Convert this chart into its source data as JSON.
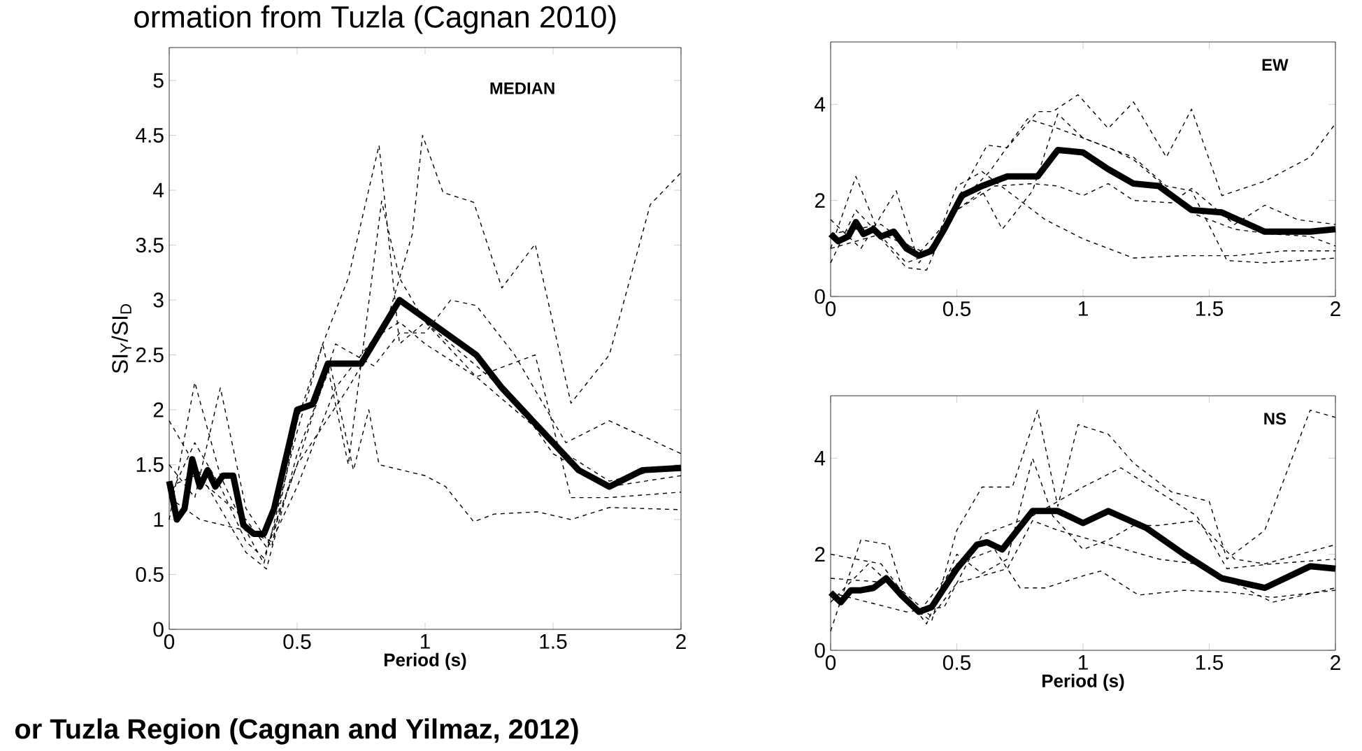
{
  "chart_data": [
    {
      "type": "line",
      "title": "MEDIAN",
      "xlabel": "Period (s)",
      "ylabel": "SI$_{Y}$/SI$_{D}$",
      "xlim": [
        0,
        2
      ],
      "ylim": [
        0,
        5.3
      ],
      "xticks": [
        0,
        0.5,
        1,
        1.5,
        2
      ],
      "yticks": [
        0,
        0.5,
        1,
        1.5,
        2,
        2.5,
        3,
        3.5,
        4,
        4.5,
        5
      ],
      "annotations": [
        "ormation from Tuzla (Cagnan 2010)",
        "or Tuzla Region (Cagnan and Yilmaz, 2012)"
      ],
      "series": [
        {
          "color": "#000000",
          "line_style": "dashed",
          "x": [
            0,
            0.1,
            0.2,
            0.3,
            0.37,
            0.5,
            0.7,
            0.85,
            0.95,
            0.99,
            1.07,
            1.19,
            1.3,
            1.43,
            1.57,
            1.72,
            1.88,
            2.0
          ],
          "values": [
            1.2,
            1.7,
            1.3,
            0.8,
            0.65,
            1.5,
            2.2,
            2.8,
            3.6,
            4.5,
            3.98,
            3.89,
            3.11,
            3.51,
            2.06,
            2.5,
            3.87,
            4.16
          ]
        },
        {
          "color": "#000000",
          "line_style": "dashed",
          "x": [
            0,
            0.1,
            0.2,
            0.3,
            0.37,
            0.5,
            0.6,
            0.7,
            0.82,
            0.9,
            1.0,
            1.1,
            1.2,
            1.35,
            1.5,
            1.72,
            2.0
          ],
          "values": [
            1.0,
            2.25,
            1.4,
            0.9,
            0.6,
            1.8,
            2.6,
            3.2,
            4.41,
            2.6,
            2.8,
            2.6,
            2.4,
            2.1,
            1.6,
            1.3,
            1.4
          ]
        },
        {
          "color": "#000000",
          "line_style": "dashed",
          "x": [
            0,
            0.1,
            0.3,
            0.38,
            0.5,
            0.63,
            0.72,
            0.78,
            0.82,
            1.0,
            1.08,
            1.19,
            1.27,
            1.44,
            1.57,
            1.72,
            2.0
          ],
          "values": [
            1.9,
            1.5,
            0.7,
            0.55,
            1.6,
            2.4,
            1.45,
            2.0,
            1.5,
            1.4,
            1.3,
            0.98,
            1.05,
            1.07,
            1.0,
            1.11,
            1.09
          ]
        },
        {
          "color": "#000000",
          "line_style": "dashed",
          "x": [
            0,
            0.1,
            0.2,
            0.3,
            0.4,
            0.5,
            0.6,
            0.7,
            0.83,
            0.9,
            1.0,
            1.1,
            1.2,
            1.43,
            1.57,
            1.72,
            2.0
          ],
          "values": [
            1.5,
            1.2,
            2.2,
            1.1,
            0.75,
            1.9,
            2.6,
            1.5,
            3.9,
            3.2,
            2.8,
            2.55,
            2.3,
            2.5,
            1.2,
            1.2,
            1.25
          ]
        },
        {
          "color": "#000000",
          "line_style": "dashed",
          "x": [
            0,
            0.1,
            0.3,
            0.38,
            0.5,
            0.65,
            0.8,
            0.9,
            1.0,
            1.1,
            1.2,
            1.35,
            1.55,
            1.72,
            2.0
          ],
          "values": [
            1.3,
            1.4,
            1.0,
            0.75,
            1.5,
            2.6,
            2.4,
            2.7,
            2.7,
            3.0,
            2.95,
            2.5,
            1.7,
            1.9,
            1.6
          ]
        },
        {
          "color": "#000000",
          "line_style": "dashed",
          "x": [
            0,
            0.12,
            0.3,
            0.4,
            0.5,
            0.65,
            0.8,
            0.9,
            1.0,
            1.2,
            1.35,
            1.55,
            1.72,
            2.0
          ],
          "values": [
            1.2,
            1.0,
            0.9,
            0.8,
            1.3,
            2.2,
            2.65,
            2.8,
            2.6,
            2.3,
            2.0,
            1.6,
            1.35,
            1.5
          ]
        },
        {
          "color": "#000000",
          "line_style": "solid",
          "x": [
            0,
            0.03,
            0.06,
            0.09,
            0.12,
            0.15,
            0.18,
            0.21,
            0.25,
            0.29,
            0.33,
            0.37,
            0.41,
            0.5,
            0.56,
            0.62,
            0.75,
            0.9,
            1.05,
            1.2,
            1.3,
            1.5,
            1.6,
            1.72,
            1.85,
            2.0
          ],
          "values": [
            1.35,
            1.0,
            1.1,
            1.55,
            1.3,
            1.45,
            1.3,
            1.4,
            1.4,
            0.95,
            0.87,
            0.87,
            1.1,
            2.0,
            2.05,
            2.42,
            2.42,
            3.0,
            2.75,
            2.5,
            2.2,
            1.7,
            1.45,
            1.3,
            1.45,
            1.47
          ]
        }
      ]
    },
    {
      "type": "line",
      "title": "EW",
      "xlim": [
        0,
        2
      ],
      "ylim": [
        0,
        5.3
      ],
      "xticks": [
        0,
        0.5,
        1,
        1.5,
        2
      ],
      "yticks": [
        0,
        2,
        4
      ],
      "series": [
        {
          "color": "#000000",
          "line_style": "dashed",
          "x": [
            0,
            0.1,
            0.2,
            0.3,
            0.38,
            0.5,
            0.62,
            0.7,
            0.82,
            0.88,
            0.98,
            1.1,
            1.2,
            1.33,
            1.43,
            1.55,
            1.72,
            1.9,
            2.0
          ],
          "values": [
            1.0,
            2.5,
            1.2,
            0.6,
            0.55,
            2.0,
            3.15,
            3.1,
            3.85,
            3.85,
            4.2,
            3.5,
            4.05,
            2.9,
            3.9,
            2.1,
            2.4,
            2.9,
            3.6
          ]
        },
        {
          "color": "#000000",
          "line_style": "dashed",
          "x": [
            0,
            0.12,
            0.26,
            0.35,
            0.5,
            0.6,
            0.68,
            0.8,
            0.9,
            1.0,
            1.2,
            1.33,
            1.43,
            1.57,
            1.72,
            2.0
          ],
          "values": [
            1.6,
            1.0,
            2.2,
            0.7,
            1.8,
            2.2,
            1.4,
            2.2,
            3.8,
            3.3,
            2.9,
            2.3,
            2.2,
            0.75,
            0.7,
            0.8
          ]
        },
        {
          "color": "#000000",
          "line_style": "dashed",
          "x": [
            0,
            0.1,
            0.3,
            0.4,
            0.5,
            0.6,
            0.75,
            0.85,
            1.0,
            1.2,
            1.4,
            1.6,
            1.8,
            2.0
          ],
          "values": [
            0.7,
            1.8,
            0.7,
            0.9,
            2.3,
            2.6,
            2.0,
            1.6,
            1.2,
            0.8,
            0.85,
            0.85,
            0.95,
            0.95
          ]
        },
        {
          "color": "#000000",
          "line_style": "dashed",
          "x": [
            0,
            0.2,
            0.35,
            0.5,
            0.65,
            0.8,
            0.9,
            1.0,
            1.1,
            1.2,
            1.35,
            1.43,
            1.6,
            1.72,
            1.85,
            2.0
          ],
          "values": [
            1.3,
            1.5,
            0.9,
            1.8,
            2.3,
            2.35,
            2.3,
            2.1,
            2.35,
            2.0,
            1.95,
            2.25,
            1.5,
            1.9,
            1.6,
            1.5
          ]
        },
        {
          "color": "#000000",
          "line_style": "dashed",
          "x": [
            0,
            0.2,
            0.38,
            0.5,
            0.63,
            0.78,
            0.9,
            1.0,
            1.1,
            1.2,
            1.3,
            1.45,
            1.6,
            1.75,
            1.9,
            2.0
          ],
          "values": [
            1.0,
            1.3,
            0.9,
            1.9,
            2.6,
            3.7,
            3.5,
            3.3,
            3.1,
            2.85,
            2.4,
            1.7,
            1.4,
            1.3,
            1.25,
            1.05
          ]
        },
        {
          "color": "#000000",
          "line_style": "solid",
          "x": [
            0,
            0.03,
            0.07,
            0.1,
            0.13,
            0.17,
            0.2,
            0.25,
            0.3,
            0.35,
            0.4,
            0.45,
            0.52,
            0.6,
            0.7,
            0.82,
            0.9,
            1.0,
            1.1,
            1.2,
            1.3,
            1.43,
            1.55,
            1.72,
            1.9,
            2.0
          ],
          "values": [
            1.3,
            1.15,
            1.25,
            1.55,
            1.3,
            1.4,
            1.25,
            1.35,
            1.0,
            0.85,
            0.95,
            1.4,
            2.1,
            2.3,
            2.5,
            2.5,
            3.05,
            3.0,
            2.65,
            2.35,
            2.3,
            1.8,
            1.75,
            1.35,
            1.35,
            1.4
          ]
        }
      ]
    },
    {
      "type": "line",
      "title": "NS",
      "xlabel": "Period (s)",
      "xlim": [
        0,
        2
      ],
      "ylim": [
        0,
        5.3
      ],
      "xticks": [
        0,
        0.5,
        1,
        1.5,
        2
      ],
      "yticks": [
        0,
        2,
        4
      ],
      "series": [
        {
          "color": "#000000",
          "line_style": "dashed",
          "x": [
            0,
            0.12,
            0.23,
            0.3,
            0.4,
            0.5,
            0.6,
            0.72,
            0.82,
            0.9,
            0.98,
            1.1,
            1.2,
            1.35,
            1.5,
            1.57,
            1.72,
            1.9,
            2.0
          ],
          "values": [
            0.4,
            2.3,
            2.2,
            1.0,
            0.6,
            2.5,
            3.4,
            3.4,
            5.0,
            3.0,
            4.7,
            4.5,
            3.9,
            3.3,
            3.1,
            1.9,
            2.5,
            5.0,
            4.85
          ]
        },
        {
          "color": "#000000",
          "line_style": "dashed",
          "x": [
            0,
            0.2,
            0.38,
            0.5,
            0.6,
            0.7,
            0.8,
            0.88,
            1.0,
            1.1,
            1.2,
            1.3,
            1.45,
            1.6,
            1.72,
            2.0
          ],
          "values": [
            2.0,
            1.8,
            0.55,
            2.0,
            1.6,
            1.9,
            4.0,
            2.8,
            2.1,
            2.3,
            2.6,
            2.6,
            2.7,
            1.9,
            1.8,
            2.2
          ]
        },
        {
          "color": "#000000",
          "line_style": "dashed",
          "x": [
            0,
            0.15,
            0.35,
            0.5,
            0.65,
            0.75,
            0.85,
            1.0,
            1.07,
            1.22,
            1.4,
            1.6,
            1.75,
            2.0
          ],
          "values": [
            1.0,
            1.8,
            0.8,
            1.8,
            2.1,
            1.3,
            1.3,
            1.55,
            1.65,
            1.15,
            1.25,
            1.2,
            1.1,
            1.25
          ]
        },
        {
          "color": "#000000",
          "line_style": "dashed",
          "x": [
            0,
            0.25,
            0.4,
            0.5,
            0.7,
            0.8,
            0.9,
            1.0,
            1.1,
            1.3,
            1.45,
            1.6,
            1.75,
            2.0
          ],
          "values": [
            1.5,
            1.4,
            0.7,
            1.4,
            1.7,
            2.7,
            2.5,
            2.35,
            2.2,
            1.9,
            1.8,
            1.4,
            1.0,
            1.3
          ]
        },
        {
          "color": "#000000",
          "line_style": "dashed",
          "x": [
            0,
            0.3,
            0.45,
            0.6,
            0.8,
            0.9,
            1.0,
            1.15,
            1.3,
            1.45,
            1.57,
            1.75,
            2.0
          ],
          "values": [
            1.2,
            0.8,
            0.9,
            2.4,
            2.8,
            3.1,
            3.4,
            3.8,
            3.3,
            2.8,
            1.7,
            1.8,
            1.9
          ]
        },
        {
          "color": "#000000",
          "line_style": "solid",
          "x": [
            0,
            0.04,
            0.08,
            0.12,
            0.17,
            0.22,
            0.28,
            0.35,
            0.4,
            0.5,
            0.58,
            0.62,
            0.68,
            0.8,
            0.9,
            1.0,
            1.1,
            1.25,
            1.4,
            1.55,
            1.72,
            1.9,
            2.0
          ],
          "values": [
            1.2,
            1.0,
            1.25,
            1.25,
            1.3,
            1.5,
            1.15,
            0.8,
            0.9,
            1.7,
            2.2,
            2.25,
            2.1,
            2.9,
            2.9,
            2.65,
            2.9,
            2.55,
            2.0,
            1.5,
            1.3,
            1.75,
            1.7
          ]
        }
      ]
    }
  ]
}
